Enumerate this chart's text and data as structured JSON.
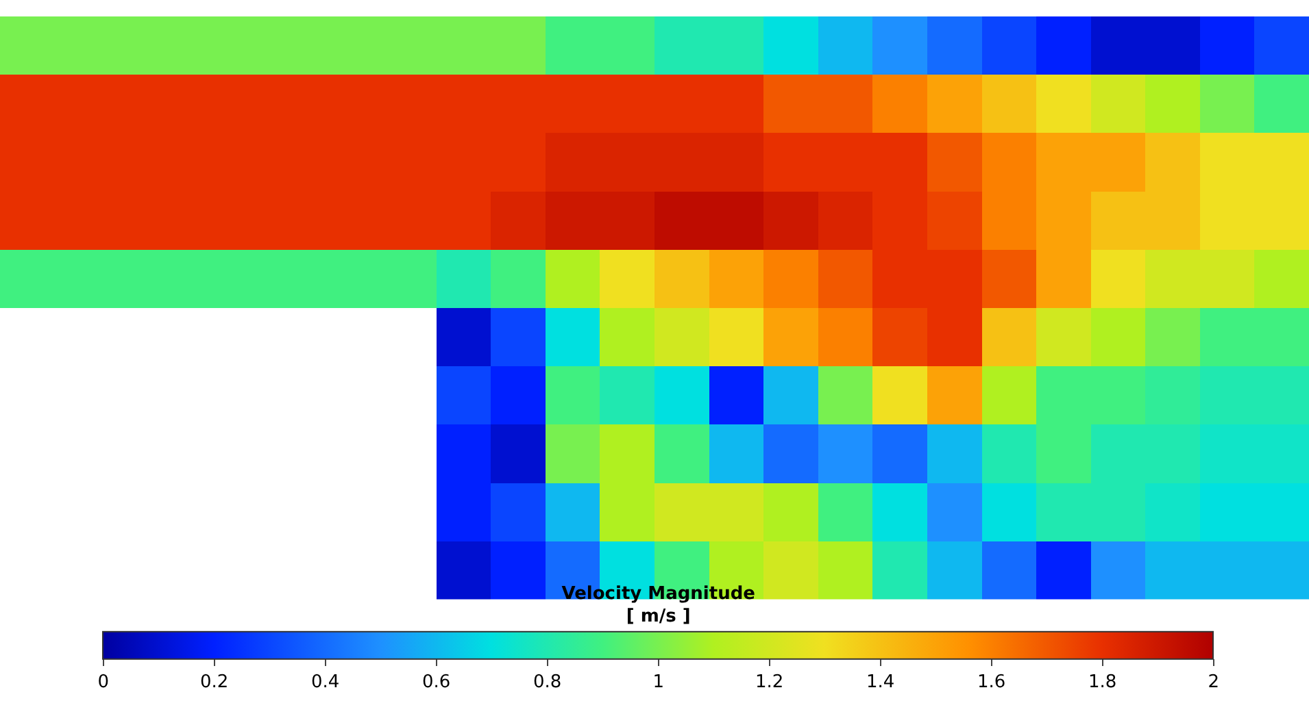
{
  "chart_data": {
    "type": "heatmap",
    "clabel": "Velocity Magnitude\n[ m/s ]",
    "categories": [
      null,
      null,
      null,
      null,
      null,
      null,
      null,
      null,
      null,
      null,
      null,
      null,
      null,
      null,
      null,
      null,
      null,
      null,
      null,
      null,
      null,
      null,
      null,
      null
    ],
    "y_categories": [
      null,
      null,
      null,
      null,
      null,
      null,
      null,
      null,
      null,
      null
    ],
    "cells": [
      [
        1.0,
        1.0,
        1.0,
        1.0,
        1.0,
        1.0,
        1.0,
        1.0,
        1.0,
        1.0,
        0.9,
        0.9,
        0.8,
        0.8,
        0.7,
        0.6,
        0.5,
        0.4,
        0.3,
        0.2,
        0.1,
        0.1,
        0.2,
        0.3
      ],
      [
        1.8,
        1.8,
        1.8,
        1.8,
        1.8,
        1.8,
        1.8,
        1.8,
        1.8,
        1.8,
        1.8,
        1.8,
        1.8,
        1.8,
        1.7,
        1.7,
        1.6,
        1.5,
        1.4,
        1.3,
        1.2,
        1.1,
        1.0,
        0.9
      ],
      [
        1.8,
        1.8,
        1.8,
        1.8,
        1.8,
        1.8,
        1.8,
        1.8,
        1.8,
        1.8,
        1.85,
        1.85,
        1.85,
        1.85,
        1.8,
        1.8,
        1.8,
        1.7,
        1.6,
        1.5,
        1.5,
        1.4,
        1.3,
        1.3
      ],
      [
        1.8,
        1.8,
        1.8,
        1.8,
        1.8,
        1.8,
        1.8,
        1.8,
        1.8,
        1.85,
        1.9,
        1.9,
        1.95,
        1.95,
        1.9,
        1.85,
        1.8,
        1.75,
        1.6,
        1.5,
        1.4,
        1.4,
        1.3,
        1.3
      ],
      [
        0.9,
        0.9,
        0.9,
        0.9,
        0.9,
        0.9,
        0.9,
        0.9,
        0.8,
        0.9,
        1.1,
        1.3,
        1.4,
        1.5,
        1.6,
        1.7,
        1.8,
        1.8,
        1.7,
        1.5,
        1.3,
        1.2,
        1.2,
        1.1
      ],
      [
        null,
        null,
        null,
        null,
        null,
        null,
        null,
        null,
        0.1,
        0.3,
        0.7,
        1.1,
        1.2,
        1.3,
        1.5,
        1.6,
        1.75,
        1.8,
        1.4,
        1.2,
        1.1,
        1.0,
        0.9,
        0.9
      ],
      [
        null,
        null,
        null,
        null,
        null,
        null,
        null,
        null,
        0.3,
        0.2,
        0.9,
        0.8,
        0.7,
        0.2,
        0.6,
        1.0,
        1.3,
        1.5,
        1.1,
        0.9,
        0.9,
        0.85,
        0.8,
        0.8
      ],
      [
        null,
        null,
        null,
        null,
        null,
        null,
        null,
        null,
        0.2,
        0.1,
        1.0,
        1.1,
        0.9,
        0.6,
        0.4,
        0.5,
        0.4,
        0.6,
        0.8,
        0.9,
        0.8,
        0.8,
        0.75,
        0.75
      ],
      [
        null,
        null,
        null,
        null,
        null,
        null,
        null,
        null,
        0.2,
        0.3,
        0.6,
        1.1,
        1.2,
        1.2,
        1.1,
        0.9,
        0.7,
        0.5,
        0.7,
        0.8,
        0.8,
        0.75,
        0.7,
        0.7
      ],
      [
        null,
        null,
        null,
        null,
        null,
        null,
        null,
        null,
        0.1,
        0.2,
        0.4,
        0.7,
        0.9,
        1.1,
        1.2,
        1.1,
        0.8,
        0.6,
        0.4,
        0.2,
        0.5,
        0.6,
        0.6,
        0.6
      ]
    ],
    "clim": [
      0,
      2
    ],
    "cticks": [
      0,
      0.2,
      0.4,
      0.6,
      0.8,
      1,
      1.2,
      1.4,
      1.6,
      1.8,
      2
    ]
  }
}
